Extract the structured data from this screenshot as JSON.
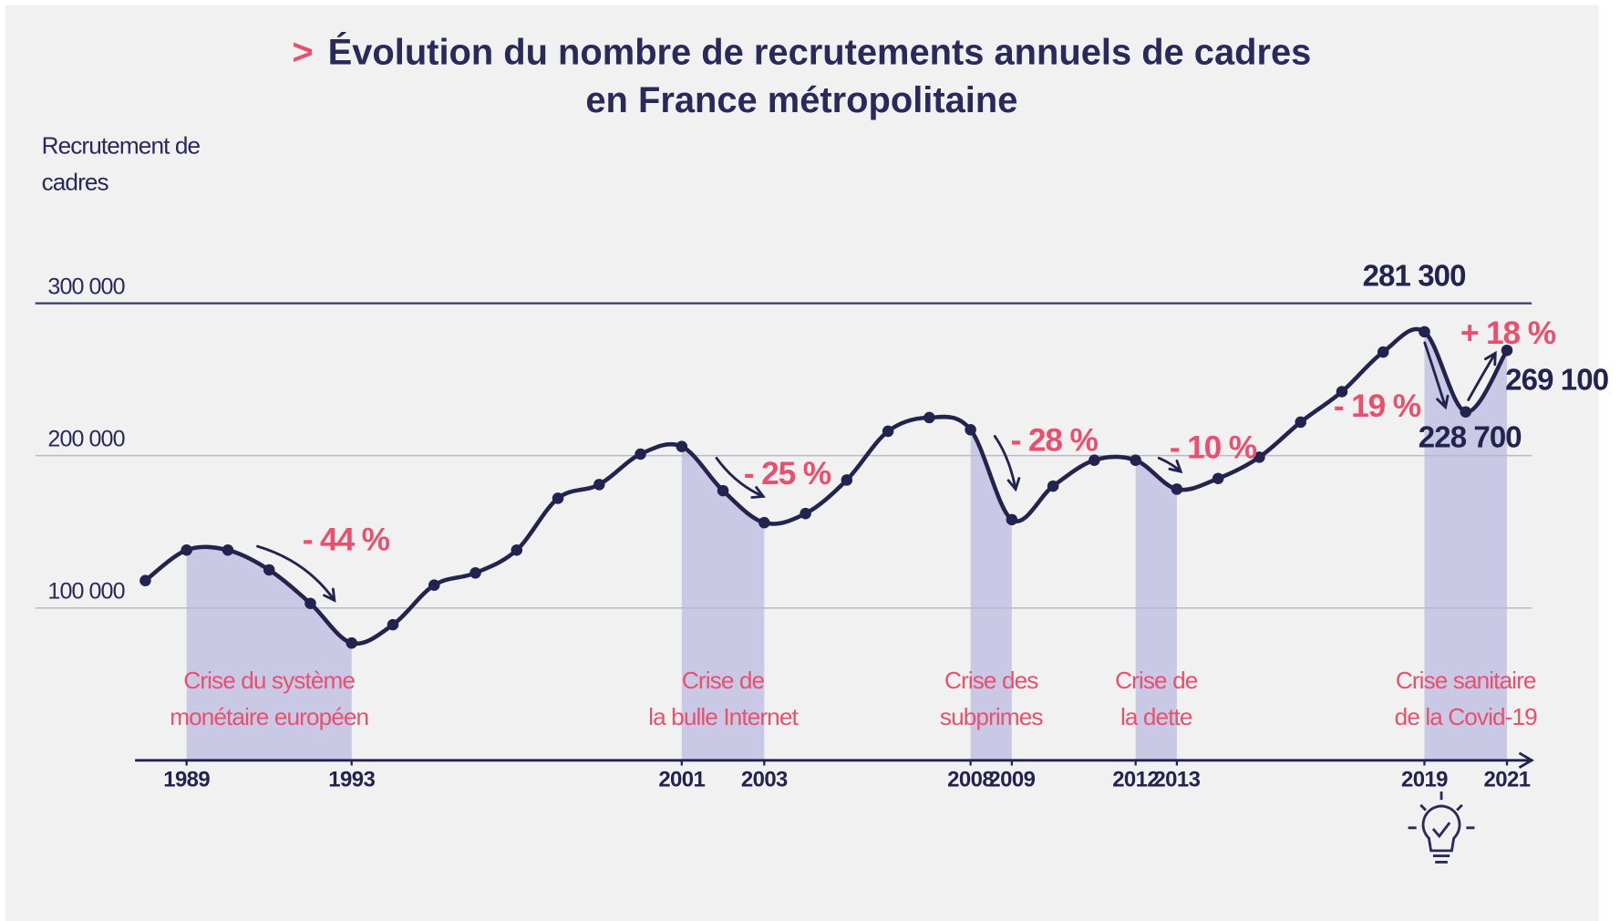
{
  "chart_data": {
    "type": "line",
    "title_marker": ">",
    "title": [
      "Évolution du nombre de recrutements annuels de cadres",
      "en France métropolitaine"
    ],
    "y_axis_label": [
      "Recrutement de",
      "cadres"
    ],
    "x": [
      1988,
      1989,
      1990,
      1991,
      1992,
      1993,
      1994,
      1995,
      1996,
      1997,
      1998,
      1999,
      2000,
      2001,
      2002,
      2003,
      2004,
      2005,
      2006,
      2007,
      2008,
      2009,
      2010,
      2011,
      2012,
      2013,
      2014,
      2015,
      2016,
      2017,
      2018,
      2019,
      2020,
      2021
    ],
    "values": [
      118000,
      138000,
      138000,
      125000,
      103000,
      77000,
      89000,
      115000,
      123000,
      138000,
      172000,
      181000,
      201000,
      206000,
      177000,
      156000,
      162000,
      184000,
      216000,
      225000,
      217000,
      158000,
      180000,
      197000,
      197000,
      178000,
      185000,
      199000,
      222000,
      242000,
      268000,
      281300,
      228700,
      269100
    ],
    "value_labels": [
      null,
      null,
      null,
      null,
      null,
      null,
      null,
      null,
      null,
      null,
      null,
      null,
      null,
      null,
      null,
      null,
      null,
      null,
      null,
      null,
      null,
      null,
      null,
      null,
      null,
      null,
      null,
      null,
      null,
      null,
      null,
      "281 300",
      "228 700",
      "269 100"
    ],
    "color": "#23234f",
    "xlim": [
      1987.75,
      2021.6
    ],
    "xticks": [
      1989,
      1993,
      2001,
      2003,
      2008,
      2009,
      2012,
      2013,
      2019,
      2021
    ],
    "ylim": [
      0,
      300000
    ],
    "yticks": [
      {
        "value": 100000,
        "label": "100 000"
      },
      {
        "value": 200000,
        "label": "200 000"
      },
      {
        "value": 300000,
        "label": "300 000"
      }
    ],
    "grid": true,
    "crises": [
      {
        "start": 1989,
        "end": 1993,
        "label": [
          "Crise du système",
          "monétaire européen"
        ]
      },
      {
        "start": 2001,
        "end": 2003,
        "label": [
          "Crise de",
          "la bulle Internet"
        ]
      },
      {
        "start": 2008,
        "end": 2009,
        "label": [
          "Crise des",
          "subprimes"
        ]
      },
      {
        "start": 2012,
        "end": 2013,
        "label": [
          "Crise de",
          "la dette"
        ]
      },
      {
        "start": 2019,
        "end": 2021,
        "label": [
          "Crise sanitaire",
          "de la Covid-19"
        ]
      }
    ],
    "shade_color": "#c9c9e6",
    "annotations": [
      "- 44 %",
      "- 25 %",
      "- 28 %",
      "- 10 %",
      "- 19 %",
      "+ 18 %"
    ],
    "accent_color": "#e8506e"
  }
}
